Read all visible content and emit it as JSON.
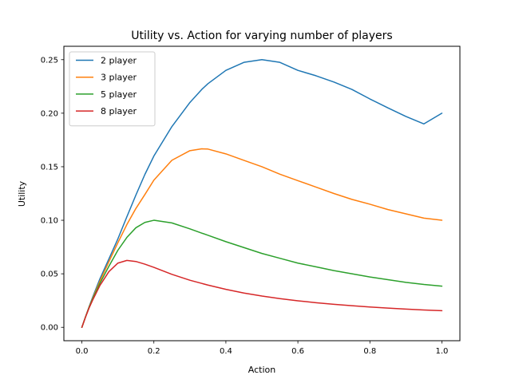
{
  "chart_data": {
    "type": "line",
    "title": "Utility vs. Action for varying number of players",
    "xlabel": "Action",
    "ylabel": "Utility",
    "xlim": [
      -0.05,
      1.05
    ],
    "ylim": [
      -0.0125,
      0.2625
    ],
    "xticks": [
      0.0,
      0.2,
      0.4,
      0.6,
      0.8,
      1.0
    ],
    "xtick_labels": [
      "0.0",
      "0.2",
      "0.4",
      "0.6",
      "0.8",
      "1.0"
    ],
    "yticks": [
      0.0,
      0.05,
      0.1,
      0.15,
      0.2,
      0.25
    ],
    "ytick_labels": [
      "0.00",
      "0.05",
      "0.10",
      "0.15",
      "0.20",
      "0.25"
    ],
    "grid": false,
    "legend_position": "upper-left",
    "x": [
      0,
      0.01,
      0.02,
      0.03,
      0.05,
      0.075,
      0.1,
      0.125,
      0.15,
      0.175,
      0.2,
      0.25,
      0.3,
      0.333,
      0.35,
      0.4,
      0.45,
      0.5,
      0.55,
      0.6,
      0.65,
      0.7,
      0.75,
      0.8,
      0.85,
      0.9,
      0.95,
      1.0
    ],
    "series": [
      {
        "name": "2 player",
        "color": "#1f77b4",
        "values": [
          0,
          0.0098,
          0.0192,
          0.0282,
          0.0452,
          0.0638,
          0.0826,
          0.1033,
          0.1235,
          0.1428,
          0.16,
          0.1875,
          0.21,
          0.2222,
          0.2275,
          0.24,
          0.2475,
          0.25,
          0.2475,
          0.24,
          0.235,
          0.2291,
          0.2222,
          0.2133,
          0.205,
          0.197,
          0.19,
          0.2
        ]
      },
      {
        "name": "3 player",
        "color": "#ff7f0e",
        "values": [
          0,
          0.0097,
          0.0188,
          0.0272,
          0.043,
          0.0612,
          0.079,
          0.096,
          0.111,
          0.124,
          0.1375,
          0.156,
          0.165,
          0.1667,
          0.1665,
          0.162,
          0.156,
          0.15,
          0.143,
          0.137,
          0.131,
          0.125,
          0.1195,
          0.115,
          0.11,
          0.106,
          0.102,
          0.1
        ]
      },
      {
        "name": "5 player",
        "color": "#2ca02c",
        "values": [
          0,
          0.0096,
          0.0185,
          0.0265,
          0.041,
          0.057,
          0.072,
          0.084,
          0.093,
          0.098,
          0.1,
          0.0975,
          0.092,
          0.088,
          0.086,
          0.08,
          0.0745,
          0.069,
          0.0645,
          0.06,
          0.0565,
          0.053,
          0.05,
          0.047,
          0.0445,
          0.042,
          0.04,
          0.0385
        ]
      },
      {
        "name": "8 player",
        "color": "#d62728",
        "values": [
          0,
          0.0094,
          0.018,
          0.0255,
          0.039,
          0.052,
          0.06,
          0.0625,
          0.0615,
          0.059,
          0.056,
          0.0495,
          0.044,
          0.041,
          0.0395,
          0.0355,
          0.032,
          0.0292,
          0.0268,
          0.0248,
          0.023,
          0.0215,
          0.0202,
          0.019,
          0.018,
          0.017,
          0.0162,
          0.0155
        ]
      }
    ]
  }
}
